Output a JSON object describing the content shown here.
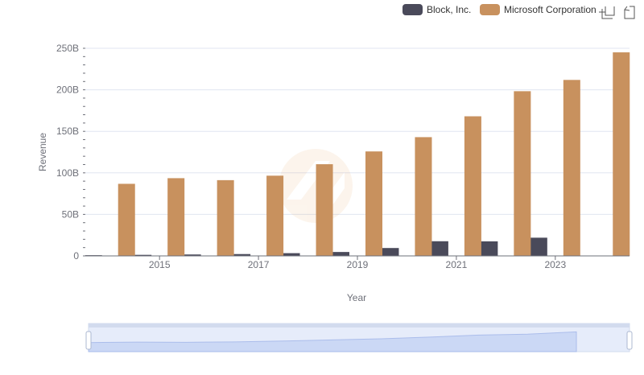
{
  "chart_data": {
    "type": "bar",
    "title": "",
    "xlabel": "Year",
    "ylabel": "Revenue",
    "categories": [
      2014,
      2015,
      2016,
      2017,
      2018,
      2019,
      2020,
      2021,
      2022,
      2023,
      2024
    ],
    "x_tick_labels": [
      "2015",
      "2017",
      "2019",
      "2021",
      "2023"
    ],
    "x_tick_values": [
      2015,
      2017,
      2019,
      2021,
      2023
    ],
    "y_tick_labels": [
      "0",
      "50B",
      "100B",
      "150B",
      "200B",
      "250B"
    ],
    "y_tick_values": [
      0,
      50,
      100,
      150,
      200,
      250
    ],
    "y_unit": "billions",
    "ylim": [
      0,
      250
    ],
    "grid": true,
    "legend_position": "top-right",
    "series": [
      {
        "name": "Block, Inc.",
        "color": "#4a4a5a",
        "values": [
          0.85,
          1.27,
          1.71,
          2.21,
          3.3,
          4.71,
          9.5,
          17.66,
          17.53,
          21.92,
          null
        ]
      },
      {
        "name": "Microsoft Corporation",
        "color": "#c8915e",
        "values": [
          86.8,
          93.6,
          91.2,
          96.6,
          110.4,
          125.8,
          143.0,
          168.1,
          198.3,
          211.9,
          245.1
        ]
      }
    ]
  },
  "toolbox": {
    "zoom_icon": "zoom-icon",
    "restore_icon": "zoom-reset-icon"
  },
  "data_zoom": {
    "start_fraction": 0,
    "end_fraction": 1
  },
  "watermark": {
    "icon": "logo-watermark-icon"
  }
}
